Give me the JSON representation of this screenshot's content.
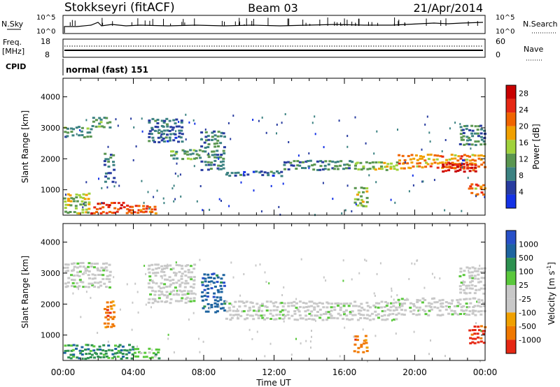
{
  "header": {
    "station": "Stokkseyri (fitACF)",
    "beam": "Beam 03",
    "date": "21/Apr/2014"
  },
  "nsky_panel": {
    "left_label": "N.Sky",
    "right_label": "N.Search",
    "tick_top": "10^5",
    "tick_bottom": "10^0",
    "right_tick_top": "10^5",
    "right_tick_bottom": "10^0"
  },
  "freq_panel": {
    "left_label_1": "Freq.",
    "left_label_2": "[MHz]",
    "right_label": "Nave",
    "left_ticks": [
      "18",
      "8"
    ],
    "right_ticks": [
      "60",
      "0"
    ]
  },
  "cpid_panel": {
    "label": "CPID",
    "text": "normal (fast) 151"
  },
  "colors": {
    "power_scale": [
      "#1432e6",
      "#283ca0",
      "#3c8282",
      "#5a9650",
      "#a0d23c",
      "#f0a000",
      "#f06400",
      "#e62814",
      "#c80000"
    ],
    "velocity_scale": [
      "#2850c8",
      "#1e64a0",
      "#2d9150",
      "#5ac83c",
      "#c8c8c8",
      "#c8c8c8",
      "#f0a000",
      "#f07800",
      "#e62814"
    ]
  },
  "chart_data": [
    {
      "type": "heatmap",
      "name": "power",
      "xlabel": "Time UT",
      "ylabel": "Slant Range [km]",
      "x_ticks": [
        "00:00",
        "04:00",
        "08:00",
        "12:00",
        "16:00",
        "20:00",
        "00:00"
      ],
      "xlim_hours": [
        0,
        24
      ],
      "ylim": [
        180,
        4600
      ],
      "y_ticks": [
        1000,
        2000,
        3000,
        4000
      ],
      "colorbar_label": "Power [dB]",
      "colorbar_ticks": [
        "4",
        "8",
        "12",
        "16",
        "20",
        "24",
        "28"
      ],
      "colorbar_range": [
        0,
        30
      ],
      "bands": [
        {
          "t0": 0.0,
          "t1": 1.6,
          "r0": 2650,
          "r1": 3050,
          "v": 10
        },
        {
          "t0": 1.6,
          "t1": 2.7,
          "r0": 2950,
          "r1": 3350,
          "v": 11
        },
        {
          "t0": 0.0,
          "t1": 1.5,
          "r0": 200,
          "r1": 900,
          "v": 15
        },
        {
          "t0": 1.5,
          "t1": 3.5,
          "r0": 200,
          "r1": 600,
          "v": 24
        },
        {
          "t0": 3.5,
          "t1": 5.3,
          "r0": 200,
          "r1": 500,
          "v": 22
        },
        {
          "t0": 2.3,
          "t1": 2.9,
          "r0": 1200,
          "r1": 2200,
          "v": 9
        },
        {
          "t0": 4.8,
          "t1": 6.8,
          "r0": 2500,
          "r1": 3300,
          "v": 7
        },
        {
          "t0": 6.0,
          "t1": 7.8,
          "r0": 1950,
          "r1": 2300,
          "v": 11
        },
        {
          "t0": 7.8,
          "t1": 9.2,
          "r0": 1600,
          "r1": 2900,
          "v": 9
        },
        {
          "t0": 9.2,
          "t1": 12.5,
          "r0": 1400,
          "r1": 1600,
          "v": 7
        },
        {
          "t0": 12.5,
          "t1": 16.5,
          "r0": 1600,
          "r1": 1950,
          "v": 9
        },
        {
          "t0": 16.5,
          "t1": 17.3,
          "r0": 400,
          "r1": 1100,
          "v": 14
        },
        {
          "t0": 16.5,
          "t1": 19.0,
          "r0": 1600,
          "r1": 1900,
          "v": 14
        },
        {
          "t0": 19.0,
          "t1": 24.0,
          "r0": 1650,
          "r1": 2150,
          "v": 20
        },
        {
          "t0": 21.5,
          "t1": 23.5,
          "r0": 1550,
          "r1": 1850,
          "v": 26
        },
        {
          "t0": 23.0,
          "t1": 24.0,
          "r0": 800,
          "r1": 1200,
          "v": 20
        },
        {
          "t0": 22.5,
          "t1": 24.0,
          "r0": 2400,
          "r1": 3100,
          "v": 9
        }
      ]
    },
    {
      "type": "heatmap",
      "name": "velocity",
      "xlabel": "Time UT",
      "ylabel": "Slant Range [km]",
      "x_ticks": [
        "00:00",
        "04:00",
        "08:00",
        "12:00",
        "16:00",
        "20:00",
        "00:00"
      ],
      "xlim_hours": [
        0,
        24
      ],
      "ylim": [
        180,
        4600
      ],
      "y_ticks": [
        1000,
        2000,
        3000,
        4000
      ],
      "colorbar_label": "Velocity [m s^-1]",
      "colorbar_ticks": [
        "1000",
        "500",
        "100",
        "25",
        "-25",
        "-100",
        "-500",
        "-1000"
      ],
      "bands": [
        {
          "t0": 0.0,
          "t1": 2.7,
          "r0": 2500,
          "r1": 3350,
          "c": 4
        },
        {
          "t0": 0.0,
          "t1": 4.0,
          "r0": 200,
          "r1": 700,
          "c": 2
        },
        {
          "t0": 4.0,
          "t1": 5.5,
          "r0": 200,
          "r1": 600,
          "c": 3
        },
        {
          "t0": 2.3,
          "t1": 2.9,
          "r0": 1200,
          "r1": 2100,
          "c": 7
        },
        {
          "t0": 4.8,
          "t1": 7.5,
          "r0": 2000,
          "r1": 3300,
          "c": 4
        },
        {
          "t0": 7.8,
          "t1": 9.2,
          "r0": 1700,
          "r1": 3000,
          "c": 1
        },
        {
          "t0": 9.2,
          "t1": 19.0,
          "r0": 1450,
          "r1": 2100,
          "c": 4
        },
        {
          "t0": 16.5,
          "t1": 17.3,
          "r0": 400,
          "r1": 1000,
          "c": 7
        },
        {
          "t0": 19.0,
          "t1": 24.0,
          "r0": 1600,
          "r1": 2200,
          "c": 4
        },
        {
          "t0": 23.0,
          "t1": 24.0,
          "r0": 700,
          "r1": 1300,
          "c": 8
        },
        {
          "t0": 22.5,
          "t1": 24.0,
          "r0": 2300,
          "r1": 3200,
          "c": 4
        }
      ]
    }
  ]
}
